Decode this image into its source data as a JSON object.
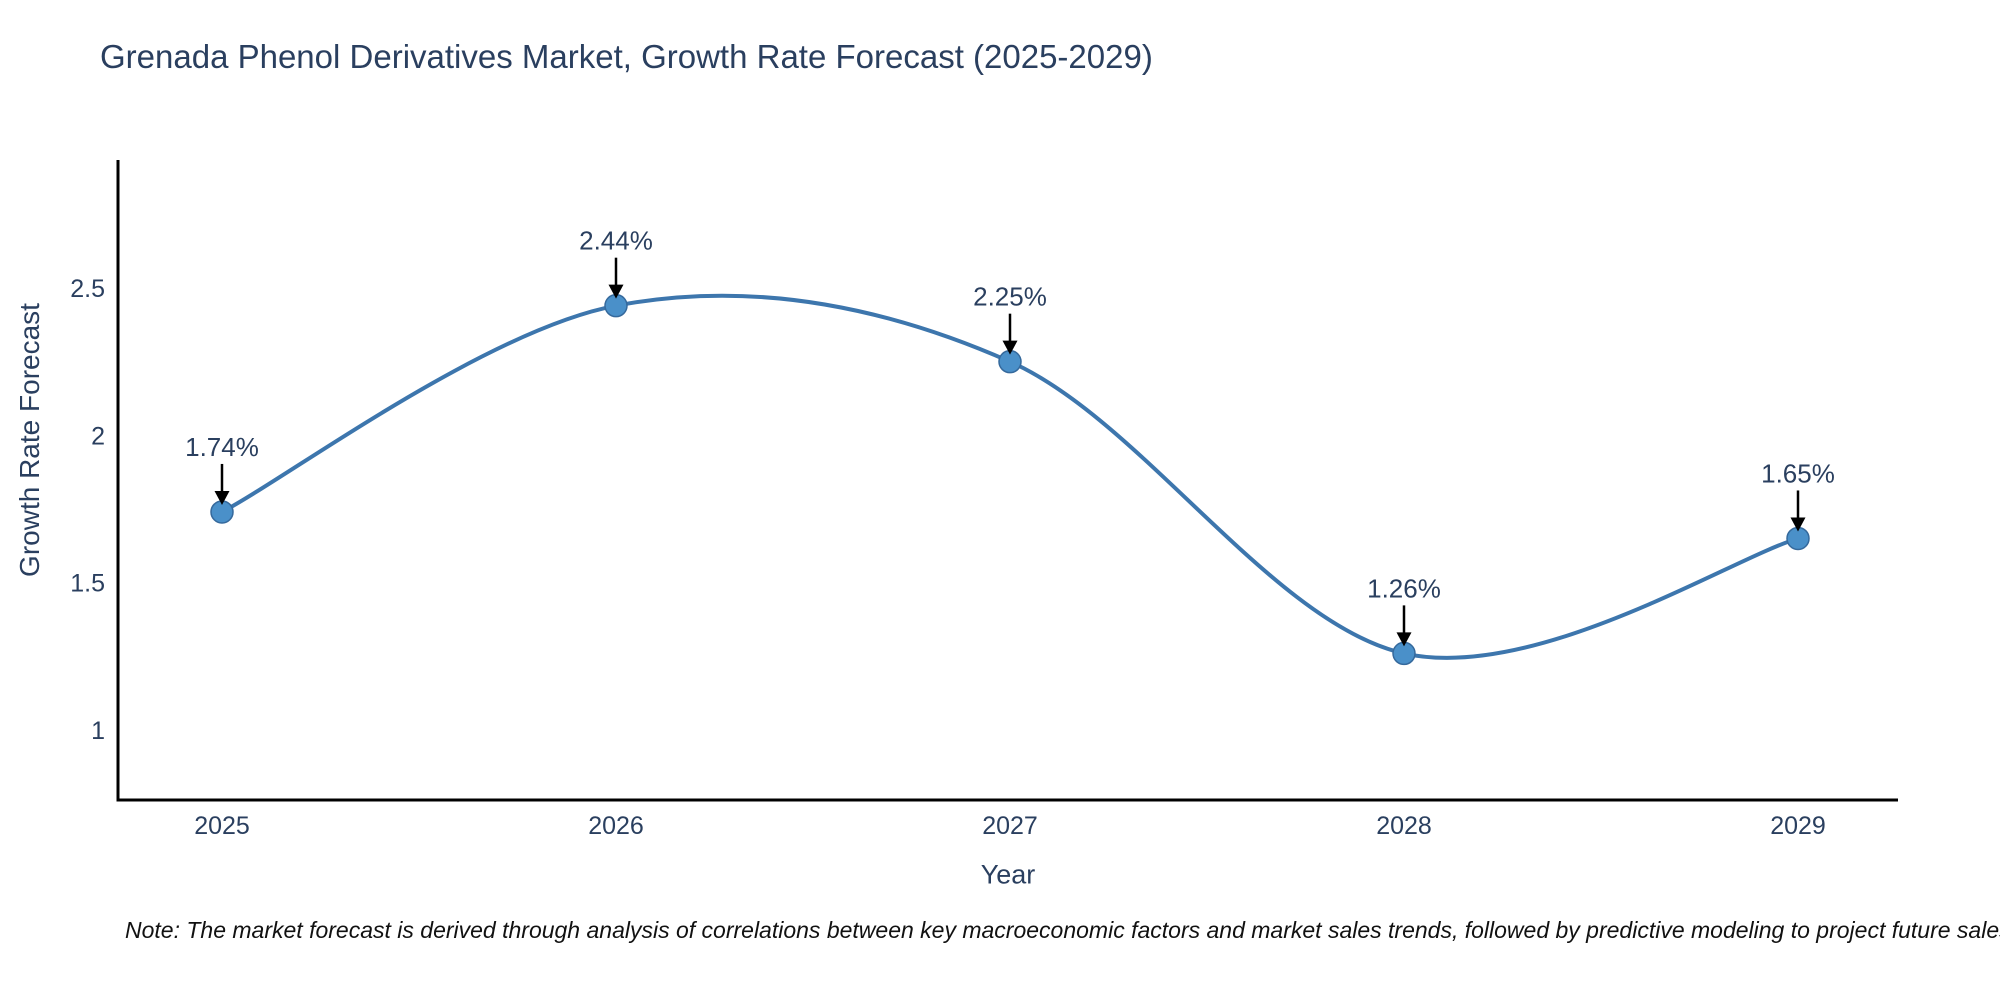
{
  "chart": {
    "title": "Grenada Phenol Derivatives Market, Growth Rate Forecast (2025-2029)",
    "xlabel": "Year",
    "ylabel": "Growth Rate Forecast",
    "note": "Note: The market forecast is derived through analysis of correlations between key macroeconomic factors and market sales trends, followed by predictive modeling to project future sales"
  },
  "chart_data": {
    "type": "line",
    "title": "Grenada Phenol Derivatives Market, Growth Rate Forecast (2025-2029)",
    "xlabel": "Year",
    "ylabel": "Growth Rate Forecast",
    "categories": [
      "2025",
      "2026",
      "2027",
      "2028",
      "2029"
    ],
    "values": [
      1.74,
      2.44,
      2.25,
      1.26,
      1.65
    ],
    "point_labels": [
      "1.74%",
      "2.44%",
      "2.25%",
      "1.26%",
      "1.65%"
    ],
    "yticks": [
      1,
      1.5,
      2,
      2.5
    ],
    "ylim": [
      0.76,
      2.93
    ],
    "line_shape": "spline",
    "grid": false,
    "legend": false,
    "markers": true,
    "annotation_arrows": true,
    "colors": {
      "line": "#3d76ad",
      "marker": "#4a90c9",
      "marker_edge": "#35699c",
      "arrow": "#000000",
      "text": "#2a3f5f",
      "axis_line": "#000000",
      "note_text": "#111111"
    }
  }
}
